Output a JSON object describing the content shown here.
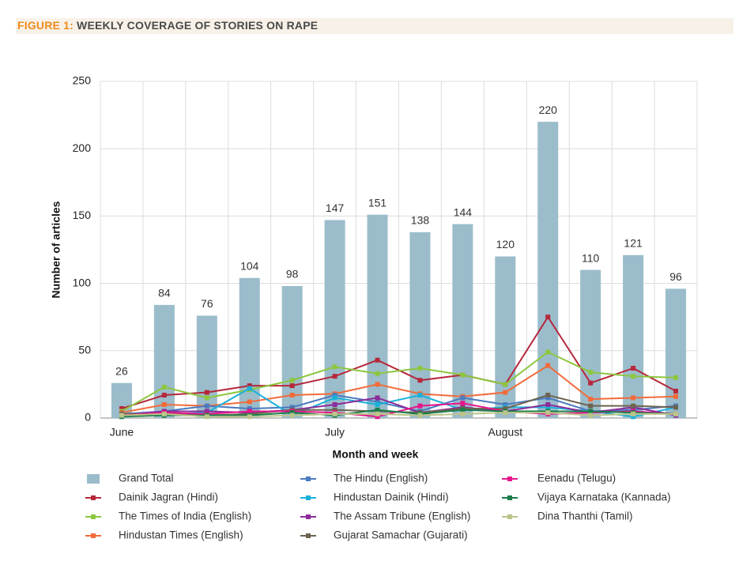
{
  "chart_data": {
    "type": "bar",
    "figure_label": "FIGURE 1:",
    "title": "WEEKLY COVERAGE OF STORIES ON RAPE",
    "x_label": "Month and week",
    "y_label": "Number of articles",
    "categories": [
      "June",
      null,
      null,
      null,
      null,
      "July",
      null,
      null,
      null,
      "August",
      null,
      null,
      null,
      null
    ],
    "ylim": [
      0,
      250
    ],
    "yticks": [
      0,
      50,
      100,
      150,
      200,
      250
    ],
    "grid": true,
    "series": [
      {
        "name": "Grand Total",
        "type": "bar",
        "color": "#9bbccb",
        "values": [
          26,
          84,
          76,
          104,
          98,
          147,
          151,
          138,
          144,
          120,
          220,
          110,
          121,
          96
        ]
      },
      {
        "name": "Dainik Jagran (Hindi)",
        "type": "line",
        "color": "#b5283a",
        "values": [
          7,
          17,
          19,
          24,
          24,
          31,
          43,
          28,
          32,
          25,
          75,
          26,
          37,
          20
        ]
      },
      {
        "name": "The Times of India (English)",
        "type": "line",
        "color": "#8dc63f",
        "values": [
          5,
          23,
          15,
          21,
          28,
          38,
          33,
          37,
          32,
          25,
          49,
          34,
          31,
          30
        ]
      },
      {
        "name": "Hindustan Times (English)",
        "type": "line",
        "color": "#f26b3a",
        "values": [
          4,
          10,
          9,
          12,
          17,
          18,
          25,
          18,
          16,
          19,
          39,
          14,
          15,
          16
        ]
      },
      {
        "name": "The Hindu (English)",
        "type": "line",
        "color": "#4a7bbf",
        "values": [
          3,
          5,
          9,
          7,
          8,
          17,
          12,
          5,
          15,
          10,
          15,
          5,
          6,
          9
        ]
      },
      {
        "name": "Hindustan Dainik (Hindi)",
        "type": "line",
        "color": "#1ab1d9",
        "values": [
          2,
          3,
          4,
          22,
          2,
          15,
          10,
          17,
          6,
          8,
          8,
          5,
          1,
          8
        ]
      },
      {
        "name": "The Assam Tribune (English)",
        "type": "line",
        "color": "#8b2c9a",
        "values": [
          2,
          5,
          5,
          4,
          6,
          10,
          15,
          4,
          8,
          5,
          10,
          4,
          8,
          2
        ]
      },
      {
        "name": "Gujarat Samachar (Gujarati)",
        "type": "line",
        "color": "#6d6350",
        "values": [
          3,
          3,
          2,
          3,
          6,
          6,
          5,
          4,
          7,
          7,
          17,
          9,
          9,
          8
        ]
      },
      {
        "name": "Eenadu (Telugu)",
        "type": "line",
        "color": "#e6168b",
        "values": [
          2,
          4,
          3,
          5,
          5,
          4,
          1,
          9,
          11,
          5,
          3,
          4,
          5,
          3
        ]
      },
      {
        "name": "Vijaya Karnataka (Kannada)",
        "type": "line",
        "color": "#1a7d4a",
        "values": [
          1,
          2,
          2,
          2,
          4,
          2,
          6,
          3,
          6,
          5,
          5,
          5,
          4,
          3
        ]
      },
      {
        "name": "Dina Thanthi (Tamil)",
        "type": "line",
        "color": "#bcc48a",
        "values": [
          2,
          3,
          1,
          1,
          2,
          3,
          3,
          2,
          3,
          4,
          4,
          2,
          3,
          3
        ]
      }
    ]
  }
}
